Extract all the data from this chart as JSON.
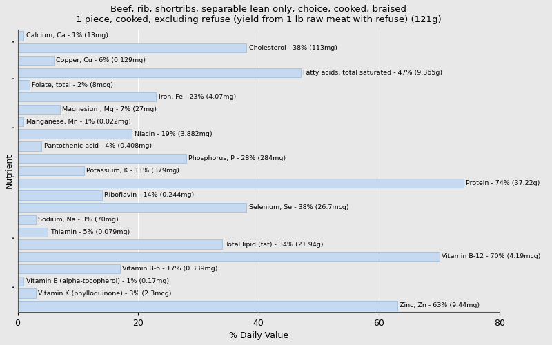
{
  "title": "Beef, rib, shortribs, separable lean only, choice, cooked, braised\n1 piece, cooked, excluding refuse (yield from 1 lb raw meat with refuse) (121g)",
  "xlabel": "% Daily Value",
  "ylabel": "Nutrient",
  "xlim": [
    0,
    80
  ],
  "background_color": "#e8e8e8",
  "bar_color": "#c5d9f1",
  "bar_edge_color": "#9ab8d8",
  "nutrients": [
    {
      "label": "Calcium, Ca - 1% (13mg)",
      "value": 1
    },
    {
      "label": "Cholesterol - 38% (113mg)",
      "value": 38
    },
    {
      "label": "Copper, Cu - 6% (0.129mg)",
      "value": 6
    },
    {
      "label": "Fatty acids, total saturated - 47% (9.365g)",
      "value": 47
    },
    {
      "label": "Folate, total - 2% (8mcg)",
      "value": 2
    },
    {
      "label": "Iron, Fe - 23% (4.07mg)",
      "value": 23
    },
    {
      "label": "Magnesium, Mg - 7% (27mg)",
      "value": 7
    },
    {
      "label": "Manganese, Mn - 1% (0.022mg)",
      "value": 1
    },
    {
      "label": "Niacin - 19% (3.882mg)",
      "value": 19
    },
    {
      "label": "Pantothenic acid - 4% (0.408mg)",
      "value": 4
    },
    {
      "label": "Phosphorus, P - 28% (284mg)",
      "value": 28
    },
    {
      "label": "Potassium, K - 11% (379mg)",
      "value": 11
    },
    {
      "label": "Protein - 74% (37.22g)",
      "value": 74
    },
    {
      "label": "Riboflavin - 14% (0.244mg)",
      "value": 14
    },
    {
      "label": "Selenium, Se - 38% (26.7mcg)",
      "value": 38
    },
    {
      "label": "Sodium, Na - 3% (70mg)",
      "value": 3
    },
    {
      "label": "Thiamin - 5% (0.079mg)",
      "value": 5
    },
    {
      "label": "Total lipid (fat) - 34% (21.94g)",
      "value": 34
    },
    {
      "label": "Vitamin B-12 - 70% (4.19mcg)",
      "value": 70
    },
    {
      "label": "Vitamin B-6 - 17% (0.339mg)",
      "value": 17
    },
    {
      "label": "Vitamin E (alpha-tocopherol) - 1% (0.17mg)",
      "value": 1
    },
    {
      "label": "Vitamin K (phylloquinone) - 3% (2.3mcg)",
      "value": 3
    },
    {
      "label": "Zinc, Zn - 63% (9.44mg)",
      "value": 63
    }
  ],
  "group_ticks": [
    1.5,
    5.5,
    10.5,
    14.5,
    18.5,
    21.5
  ]
}
